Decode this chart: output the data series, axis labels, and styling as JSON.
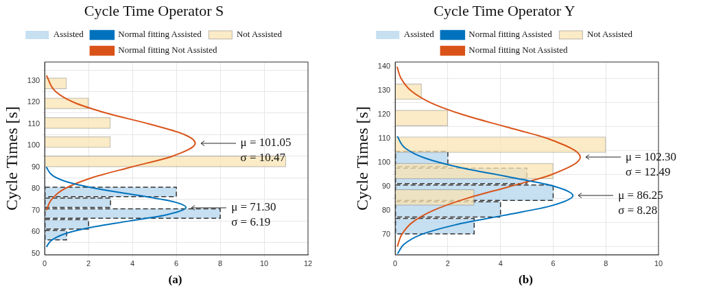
{
  "chart_data": [
    {
      "type": "histogram",
      "orientation": "horizontal",
      "title": "Cycle Time Operator S",
      "ylabel": "Cycle Times [s]",
      "xlim": [
        0,
        12
      ],
      "xticks": [
        0,
        2,
        4,
        6,
        8,
        10,
        12
      ],
      "ylim": [
        49.3,
        138.7
      ],
      "yticks": [
        50,
        60,
        70,
        80,
        90,
        100,
        110,
        120,
        130
      ],
      "grid": true,
      "legend": "top",
      "series": [
        {
          "name": "Assisted",
          "color": "#b3d4ec",
          "line_style": "dashed",
          "bins": [
            56,
            61,
            66,
            71,
            76,
            81
          ],
          "values": [
            1,
            2,
            8,
            3,
            6
          ]
        },
        {
          "name": "Normal fitting Assisted",
          "type": "line",
          "color": "#0072bd",
          "x": [
            53,
            56,
            59,
            62,
            65,
            68,
            71.3,
            74,
            77,
            80,
            83,
            86,
            90
          ],
          "values": [
            0.08,
            0.3,
            0.89,
            2.08,
            3.84,
            5.59,
            6.44,
            5.86,
            4.21,
            2.4,
            1.08,
            0.38,
            0.07
          ]
        },
        {
          "name": "Not Assisted",
          "type": "bar",
          "color": "#f9e4b3",
          "x": [
            92.65,
            101.6,
            110.45,
            119.5,
            128.75
          ],
          "values": [
            11,
            3,
            3,
            2,
            1
          ]
        },
        {
          "name": "Normal fitting Not Assisted",
          "type": "line",
          "color": "#d95319",
          "x": [
            70,
            75,
            80,
            85,
            90,
            95,
            101.05,
            105,
            110,
            115,
            120,
            125,
            132.5
          ],
          "values": [
            0.08,
            0.31,
            0.91,
            2.12,
            3.93,
            5.8,
            6.86,
            6.39,
            4.76,
            2.82,
            1.33,
            0.5,
            0.08
          ]
        }
      ],
      "annotations": [
        {
          "text": "μ = 101.05\nσ = 10.47",
          "x": 6.86,
          "y": 101.05
        },
        {
          "text": "μ = 71.30\nσ = 6.19",
          "x": 6.44,
          "y": 71.3
        },
        "(a)"
      ]
    },
    {
      "type": "histogram",
      "orientation": "horizontal",
      "title": "Cycle Time Operator Y",
      "ylabel": "Cycle Times [s]",
      "xlim": [
        0,
        10
      ],
      "xticks": [
        0,
        2,
        4,
        6,
        8,
        10
      ],
      "ylim": [
        61.5,
        142
      ],
      "yticks": [
        70,
        80,
        90,
        100,
        110,
        120,
        130,
        140
      ],
      "grid": true,
      "legend": "top",
      "series": [
        {
          "name": "Assisted",
          "color": "#b3d4ec",
          "line_style": "dashed",
          "bins": [
            70,
            77,
            84,
            91,
            98,
            105
          ],
          "values": [
            3,
            4,
            6,
            5,
            2
          ]
        },
        {
          "name": "Normal fitting Assisted",
          "type": "line",
          "color": "#0072bd",
          "x": [
            62,
            66,
            70,
            74,
            78,
            82,
            86.25,
            90,
            94,
            98,
            102,
            106,
            111
          ],
          "values": [
            0.09,
            0.34,
            0.98,
            2.26,
            4.11,
            5.92,
            6.75,
            6.09,
            4.35,
            2.46,
            1.11,
            0.39,
            0.08
          ]
        },
        {
          "name": "Not Assisted",
          "type": "bar",
          "color": "#f9e4b3",
          "x": [
            85.5,
            96.5,
            107.5,
            118.6,
            129.6
          ],
          "values": [
            3,
            6,
            8,
            2,
            1
          ]
        },
        {
          "name": "Normal fitting Not Assisted",
          "type": "line",
          "color": "#d95319",
          "x": [
            65,
            70,
            75,
            80,
            85,
            90,
            95,
            102.3,
            110,
            115,
            120,
            125,
            130,
            135,
            140
          ],
          "values": [
            0.08,
            0.25,
            0.64,
            1.43,
            2.69,
            4.33,
            5.93,
            7.03,
            5.81,
            4.19,
            2.58,
            1.35,
            0.6,
            0.23,
            0.07
          ]
        }
      ],
      "annotations": [
        {
          "text": "μ = 102.30\nσ = 12.49",
          "x": 7.03,
          "y": 102.3
        },
        {
          "text": "μ = 86.25\nσ = 8.28",
          "x": 6.75,
          "y": 86.25
        },
        "(b)"
      ]
    }
  ]
}
